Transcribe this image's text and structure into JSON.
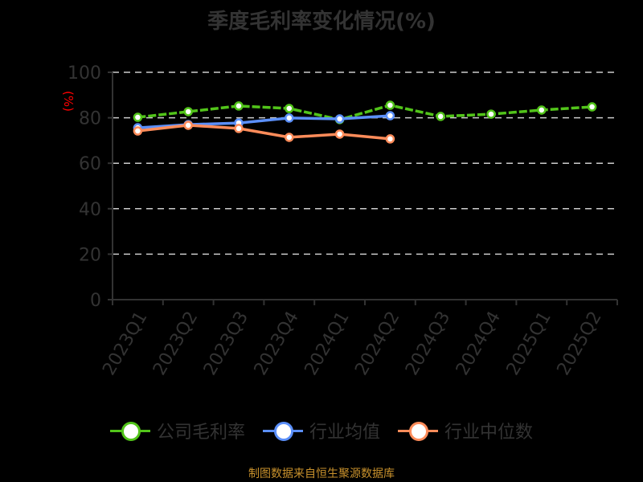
{
  "title": "季度毛利率变化情况(%)",
  "source": "制图数据来自恒生聚源数据库",
  "colors": {
    "company": "#52c41a",
    "average": "#5b8ff9",
    "median": "#ff8c5a",
    "axis": "#333333",
    "unit": "#ff0000",
    "grid": "#cccccc",
    "source": "#c8912c"
  },
  "legend": [
    {
      "label": "公司毛利率",
      "color": "#52c41a"
    },
    {
      "label": "行业均值",
      "color": "#5b8ff9"
    },
    {
      "label": "行业中位数",
      "color": "#ff8c5a"
    }
  ],
  "chart_data": {
    "type": "line",
    "title": "季度毛利率变化情况(%)",
    "xlabel": "",
    "ylabel": "(%)",
    "ylim": [
      0,
      100
    ],
    "yticks": [
      0,
      20,
      40,
      60,
      80,
      100
    ],
    "grid": true,
    "legend_position": "bottom",
    "categories": [
      "2023Q1",
      "2023Q2",
      "2023Q3",
      "2023Q4",
      "2024Q1",
      "2024Q2",
      "2024Q3",
      "2024Q4",
      "2025Q1",
      "2025Q2"
    ],
    "series": [
      {
        "name": "公司毛利率",
        "values": [
          80.2,
          82.7,
          85.2,
          84.1,
          79.2,
          85.5,
          80.6,
          81.6,
          83.4,
          84.8
        ]
      },
      {
        "name": "行业均值",
        "values": [
          75.6,
          77.0,
          77.7,
          79.9,
          79.5,
          80.9,
          null,
          null,
          null,
          null
        ]
      },
      {
        "name": "行业中位数",
        "values": [
          74.2,
          76.7,
          75.3,
          71.4,
          72.8,
          70.7,
          null,
          null,
          null,
          null
        ]
      }
    ]
  }
}
